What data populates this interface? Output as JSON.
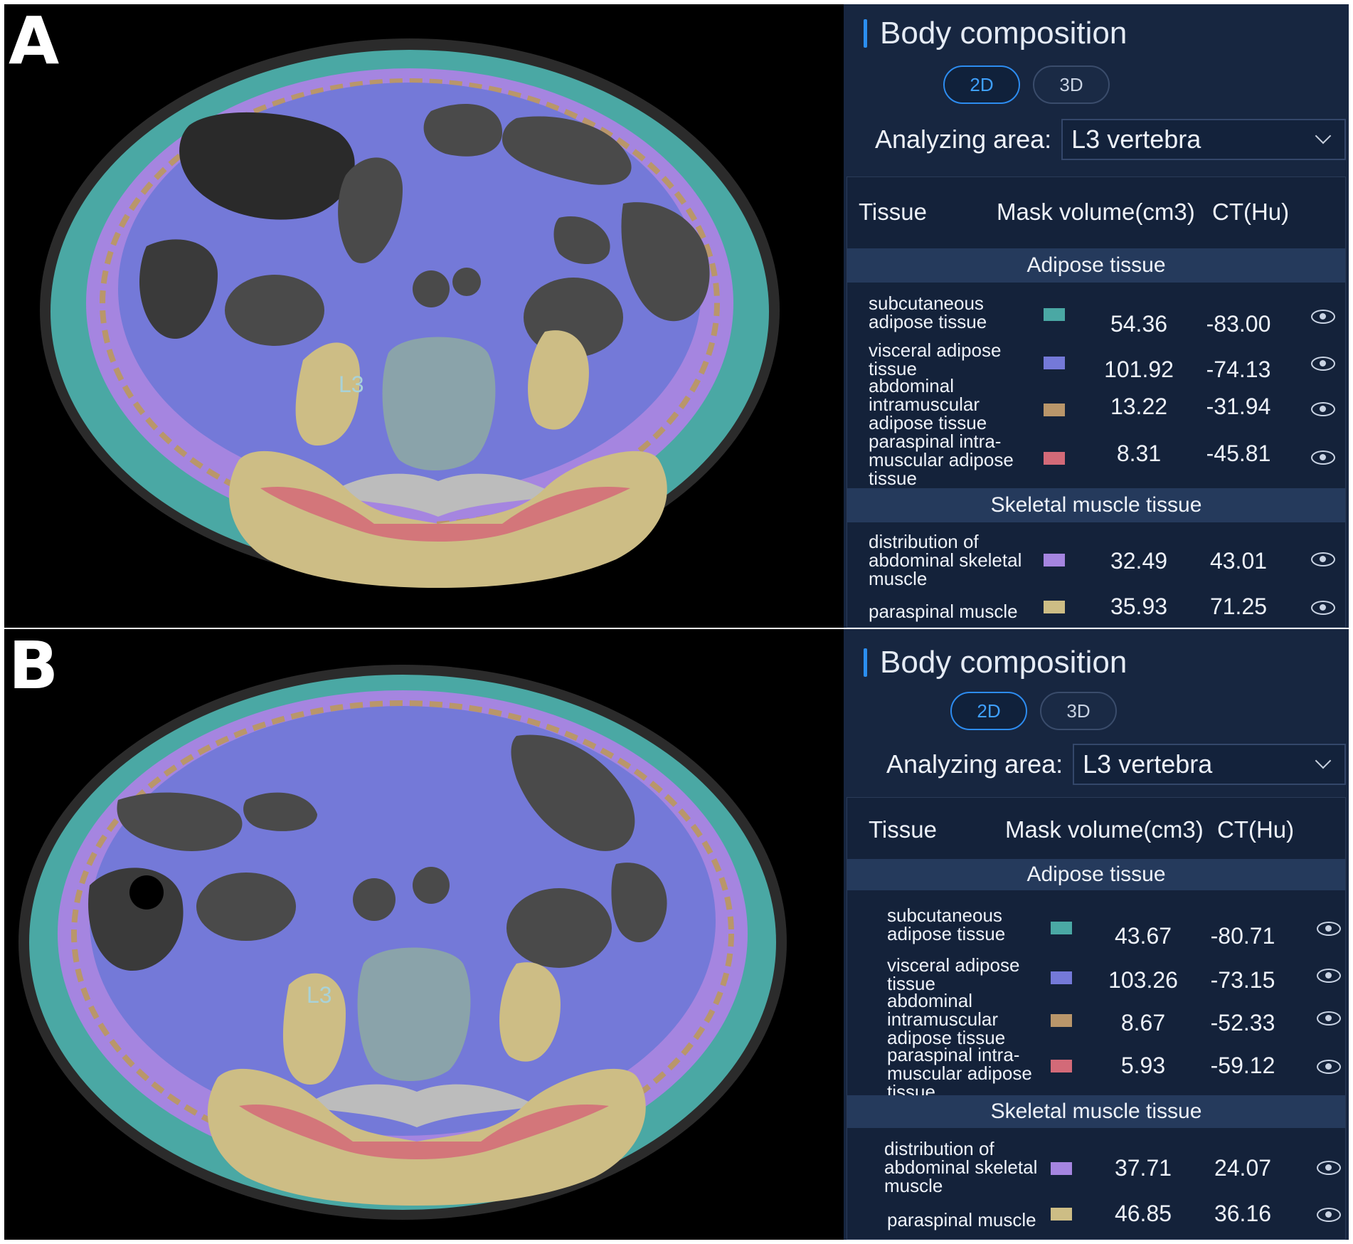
{
  "colors": {
    "subcutaneous": "#4aa8a4",
    "visceral": "#7479d8",
    "abdominal_intramuscular": "#b9966a",
    "paraspinal_intramuscular": "#d36a78",
    "abdominal_skeletal_muscle": "#a585e0",
    "paraspinal_muscle": "#cdbd85",
    "panel_bg": "#172640",
    "accent": "#2d8cf0"
  },
  "panels": [
    {
      "label": "A",
      "vertebra_label": "L3",
      "ui": {
        "title": "Body composition",
        "tabs": [
          "2D",
          "3D"
        ],
        "analyzing_label": "Analyzing area:",
        "analyzing_value": "L3 vertebra",
        "headers": {
          "tissue": "Tissue",
          "mask": "Mask",
          "volume": "volume(cm3)",
          "ct": "CT(Hu)"
        },
        "section_adipose": "Adipose tissue",
        "section_muscle": "Skeletal muscle tissue",
        "rows": [
          {
            "name_lines": [
              "subcutaneous",
              "adipose tissue"
            ],
            "color": "#4aa8a4",
            "volume": "54.36",
            "ct": "-83.00"
          },
          {
            "name_lines": [
              "visceral adipose",
              "tissue"
            ],
            "color": "#7479d8",
            "volume": "101.92",
            "ct": "-74.13"
          },
          {
            "name_lines": [
              "abdominal",
              "intramuscular",
              "adipose tissue"
            ],
            "color": "#b9966a",
            "volume": "13.22",
            "ct": "-31.94"
          },
          {
            "name_lines": [
              "paraspinal intra-",
              "muscular adipose",
              "tissue"
            ],
            "color": "#d36a78",
            "volume": "8.31",
            "ct": "-45.81"
          },
          {
            "name_lines": [
              "distribution of",
              "abdominal skeletal",
              "muscle"
            ],
            "color": "#a585e0",
            "volume": "32.49",
            "ct": "43.01"
          },
          {
            "name_lines": [
              "paraspinal muscle"
            ],
            "color": "#cdbd85",
            "volume": "35.93",
            "ct": "71.25"
          }
        ]
      }
    },
    {
      "label": "B",
      "vertebra_label": "L3",
      "ui": {
        "title": "Body composition",
        "tabs": [
          "2D",
          "3D"
        ],
        "analyzing_label": "Analyzing area:",
        "analyzing_value": "L3 vertebra",
        "headers": {
          "tissue": "Tissue",
          "mask": "Mask",
          "volume": "volume(cm3)",
          "ct": "CT(Hu)"
        },
        "section_adipose": "Adipose tissue",
        "section_muscle": "Skeletal muscle tissue",
        "rows": [
          {
            "name_lines": [
              "subcutaneous",
              "adipose tissue"
            ],
            "color": "#4aa8a4",
            "volume": "43.67",
            "ct": "-80.71"
          },
          {
            "name_lines": [
              "visceral adipose",
              "tissue"
            ],
            "color": "#7479d8",
            "volume": "103.26",
            "ct": "-73.15"
          },
          {
            "name_lines": [
              "abdominal",
              "intramuscular",
              "adipose tissue"
            ],
            "color": "#b9966a",
            "volume": "8.67",
            "ct": "-52.33"
          },
          {
            "name_lines": [
              "paraspinal intra-",
              "muscular adipose",
              "tissue"
            ],
            "color": "#d36a78",
            "volume": "5.93",
            "ct": "-59.12"
          },
          {
            "name_lines": [
              "distribution of",
              "abdominal skeletal",
              "muscle"
            ],
            "color": "#a585e0",
            "volume": "37.71",
            "ct": "24.07"
          },
          {
            "name_lines": [
              "paraspinal muscle"
            ],
            "color": "#cdbd85",
            "volume": "46.85",
            "ct": "36.16"
          }
        ]
      }
    }
  ]
}
